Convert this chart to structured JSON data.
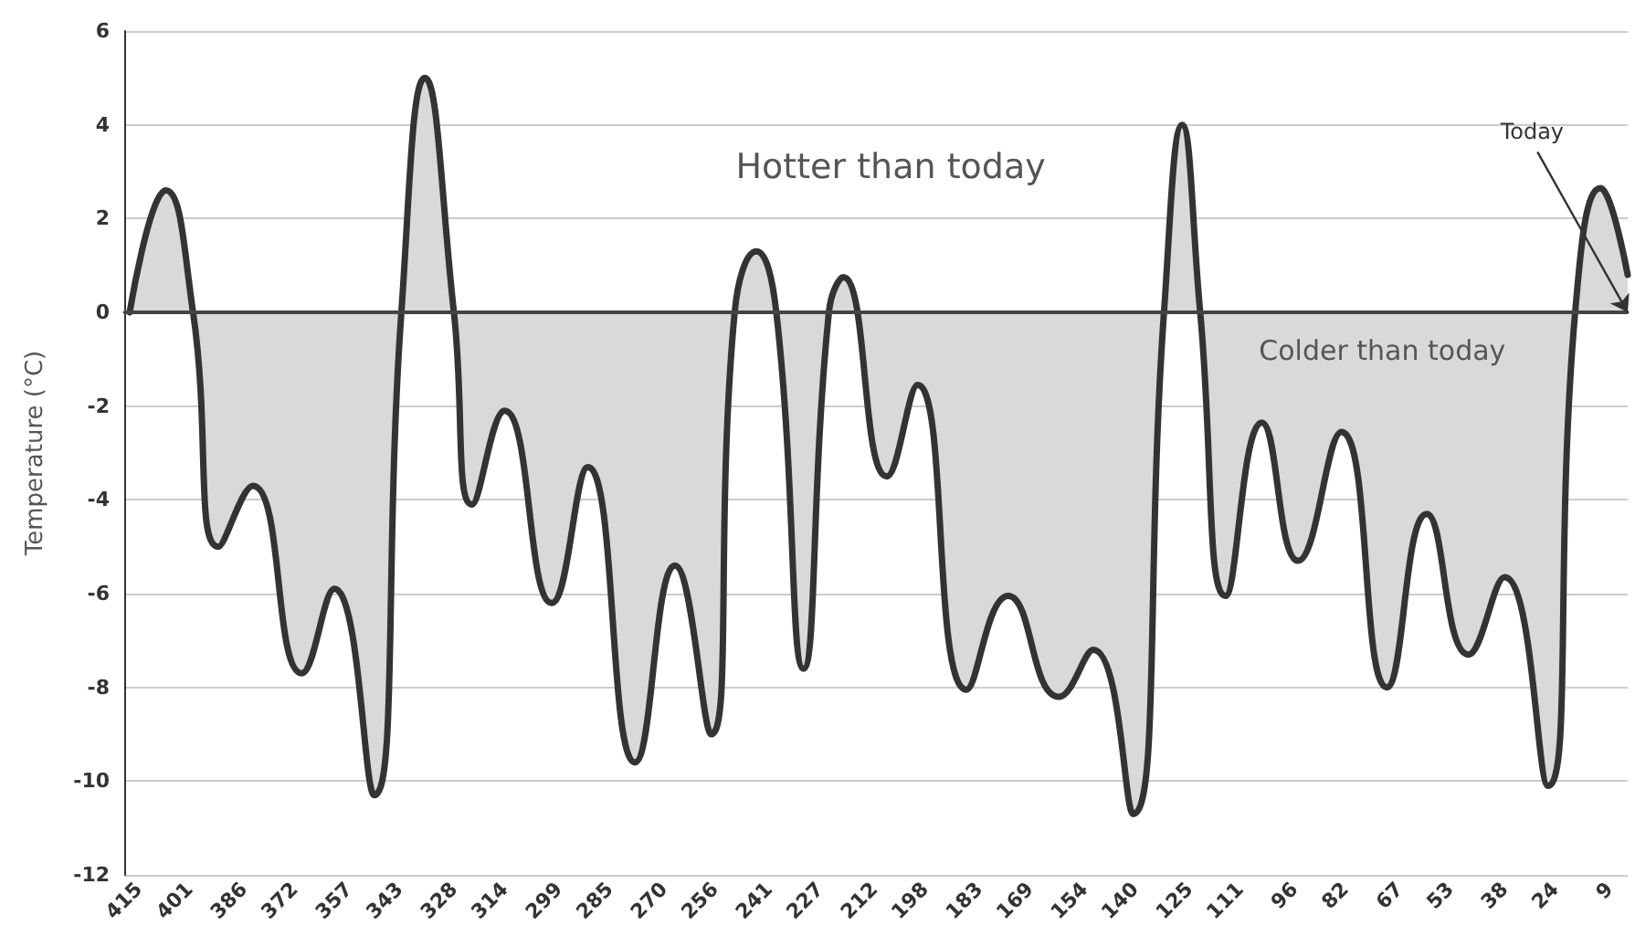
{
  "chart_data": {
    "type": "area",
    "ylabel": "Temperature (°C)",
    "x": [
      417.5,
      407.5,
      400,
      393,
      383.5,
      370,
      361,
      350,
      342.5,
      336,
      328,
      323,
      314,
      301,
      291,
      278,
      267,
      257,
      250.5,
      244.5,
      239,
      231.5,
      224.5,
      220.5,
      208.5,
      200,
      186.5,
      175,
      161,
      151.5,
      140.5,
      132,
      127,
      122,
      115,
      105,
      95,
      83,
      70.5,
      59.5,
      48,
      38,
      26,
      18.5,
      11.5,
      4
    ],
    "series": [
      {
        "color": "#333333",
        "values": [
          0,
          2.6,
          0,
          -5.0,
          -3.7,
          -7.7,
          -5.9,
          -10.3,
          0,
          5.0,
          0,
          -4.1,
          -2.1,
          -6.2,
          -3.3,
          -9.6,
          -5.4,
          -9.0,
          0,
          1.3,
          0,
          -7.6,
          0,
          0.75,
          -3.5,
          -1.55,
          -8.05,
          -6.05,
          -8.2,
          -7.2,
          -10.7,
          0,
          4.0,
          0,
          -6.05,
          -2.35,
          -5.3,
          -2.55,
          -8.0,
          -4.3,
          -7.3,
          -5.65,
          -10.1,
          0,
          2.65,
          0.8
        ]
      }
    ],
    "xlim": [
      419,
      4
    ],
    "xticks": [
      415,
      401,
      386,
      372,
      357,
      343,
      328,
      314,
      299,
      285,
      270,
      256,
      241,
      227,
      212,
      198,
      183,
      169,
      154,
      140,
      125,
      111,
      96,
      82,
      67,
      53,
      38,
      24,
      9
    ],
    "ylim": [
      -12,
      6
    ],
    "yticks": [
      -12,
      -10,
      -8,
      -6,
      -4,
      -2,
      0,
      2,
      4,
      6
    ],
    "grid": "y",
    "marker": "none",
    "line_style": "solid",
    "ref_lines": [
      {
        "axis": "y",
        "value": 0,
        "color": "#444444"
      }
    ],
    "annotations": [
      "Hotter than today",
      "Colder than today",
      {
        "text": "Today",
        "x": 4,
        "y": 0
      }
    ]
  }
}
